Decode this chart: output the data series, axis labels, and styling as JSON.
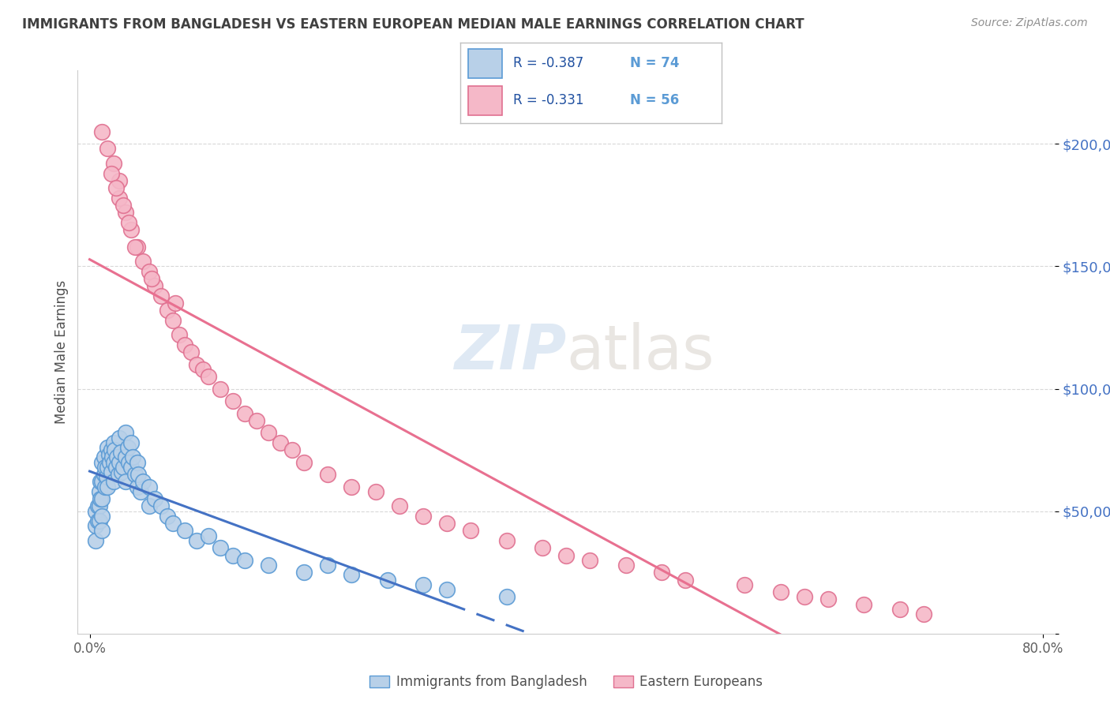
{
  "title": "IMMIGRANTS FROM BANGLADESH VS EASTERN EUROPEAN MEDIAN MALE EARNINGS CORRELATION CHART",
  "source": "Source: ZipAtlas.com",
  "ylabel": "Median Male Earnings",
  "legend_label1": "Immigrants from Bangladesh",
  "legend_label2": "Eastern Europeans",
  "legend_r1": "-0.387",
  "legend_n1": "74",
  "legend_r2": "-0.331",
  "legend_n2": "56",
  "watermark_zip": "ZIP",
  "watermark_atlas": "atlas",
  "color_blue_fill": "#b8d0e8",
  "color_blue_edge": "#5b9bd5",
  "color_blue_line": "#4472c4",
  "color_pink_fill": "#f5b8c8",
  "color_pink_edge": "#e07090",
  "color_pink_line": "#e87090",
  "title_color": "#404040",
  "source_color": "#909090",
  "tick_color": "#4472c4",
  "grid_color": "#d8d8d8",
  "ylim_min": 0,
  "ylim_max": 230000,
  "xlim_min": -0.01,
  "xlim_max": 0.81,
  "yticks": [
    0,
    50000,
    100000,
    150000,
    200000
  ],
  "ytick_labels": [
    "",
    "$50,000",
    "$100,000",
    "$150,000",
    "$200,000"
  ],
  "blue_scatter_x": [
    0.005,
    0.005,
    0.005,
    0.007,
    0.007,
    0.008,
    0.008,
    0.008,
    0.009,
    0.009,
    0.01,
    0.01,
    0.01,
    0.01,
    0.01,
    0.012,
    0.012,
    0.013,
    0.013,
    0.014,
    0.015,
    0.015,
    0.015,
    0.016,
    0.017,
    0.018,
    0.018,
    0.019,
    0.02,
    0.02,
    0.02,
    0.021,
    0.022,
    0.023,
    0.024,
    0.025,
    0.025,
    0.026,
    0.027,
    0.028,
    0.03,
    0.03,
    0.03,
    0.032,
    0.033,
    0.035,
    0.035,
    0.036,
    0.038,
    0.04,
    0.04,
    0.041,
    0.043,
    0.045,
    0.05,
    0.05,
    0.055,
    0.06,
    0.065,
    0.07,
    0.08,
    0.09,
    0.1,
    0.11,
    0.12,
    0.13,
    0.15,
    0.18,
    0.2,
    0.22,
    0.25,
    0.28,
    0.3,
    0.35
  ],
  "blue_scatter_y": [
    50000,
    44000,
    38000,
    52000,
    46000,
    58000,
    52000,
    46000,
    62000,
    55000,
    70000,
    62000,
    55000,
    48000,
    42000,
    72000,
    65000,
    68000,
    60000,
    64000,
    76000,
    68000,
    60000,
    73000,
    70000,
    75000,
    66000,
    72000,
    78000,
    70000,
    62000,
    75000,
    68000,
    72000,
    65000,
    80000,
    70000,
    74000,
    66000,
    68000,
    82000,
    72000,
    62000,
    76000,
    70000,
    78000,
    68000,
    72000,
    65000,
    70000,
    60000,
    65000,
    58000,
    62000,
    60000,
    52000,
    55000,
    52000,
    48000,
    45000,
    42000,
    38000,
    40000,
    35000,
    32000,
    30000,
    28000,
    25000,
    28000,
    24000,
    22000,
    20000,
    18000,
    15000
  ],
  "pink_scatter_x": [
    0.01,
    0.015,
    0.02,
    0.025,
    0.025,
    0.03,
    0.035,
    0.04,
    0.045,
    0.05,
    0.055,
    0.06,
    0.065,
    0.07,
    0.075,
    0.08,
    0.085,
    0.09,
    0.095,
    0.1,
    0.11,
    0.12,
    0.13,
    0.14,
    0.15,
    0.16,
    0.17,
    0.18,
    0.2,
    0.22,
    0.24,
    0.26,
    0.28,
    0.3,
    0.32,
    0.35,
    0.38,
    0.4,
    0.42,
    0.45,
    0.48,
    0.5,
    0.55,
    0.58,
    0.6,
    0.62,
    0.65,
    0.68,
    0.7,
    0.018,
    0.022,
    0.028,
    0.033,
    0.038,
    0.052,
    0.072
  ],
  "pink_scatter_y": [
    205000,
    198000,
    192000,
    178000,
    185000,
    172000,
    165000,
    158000,
    152000,
    148000,
    142000,
    138000,
    132000,
    128000,
    122000,
    118000,
    115000,
    110000,
    108000,
    105000,
    100000,
    95000,
    90000,
    87000,
    82000,
    78000,
    75000,
    70000,
    65000,
    60000,
    58000,
    52000,
    48000,
    45000,
    42000,
    38000,
    35000,
    32000,
    30000,
    28000,
    25000,
    22000,
    20000,
    17000,
    15000,
    14000,
    12000,
    10000,
    8000,
    188000,
    182000,
    175000,
    168000,
    158000,
    145000,
    135000
  ]
}
